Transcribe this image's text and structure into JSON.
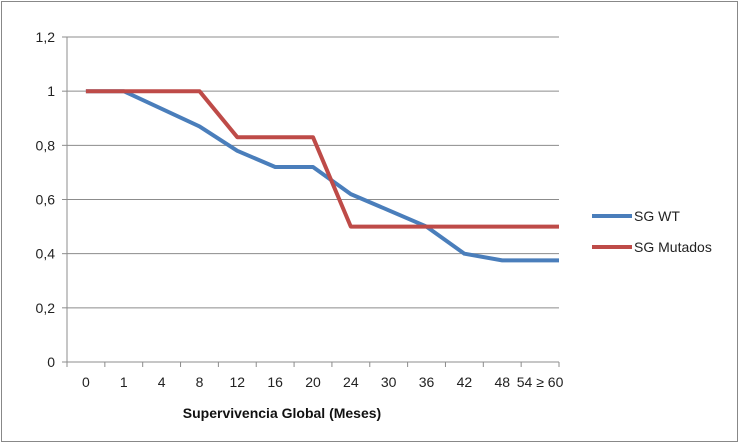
{
  "chart_data": {
    "type": "line",
    "title": "",
    "xlabel": "Supervivencia Global (Meses)",
    "ylabel": "",
    "categories": [
      "0",
      "1",
      "4",
      "8",
      "12",
      "16",
      "20",
      "24",
      "30",
      "36",
      "42",
      "48",
      "54 ≥ 60"
    ],
    "y_ticks": [
      "0",
      "0,2",
      "0,4",
      "0,6",
      "0,8",
      "1",
      "1,2"
    ],
    "ylim": [
      0,
      1.2
    ],
    "grid": "horizontal",
    "legend_position": "right",
    "series": [
      {
        "name": "SG WT",
        "color": "#4a7ebb",
        "points": [
          {
            "x": 0,
            "y": 1
          },
          {
            "x": 1,
            "y": 1
          },
          {
            "x": 3,
            "y": 0.87
          },
          {
            "x": 4,
            "y": 0.78
          },
          {
            "x": 5,
            "y": 0.72
          },
          {
            "x": 6,
            "y": 0.72
          },
          {
            "x": 7,
            "y": 0.62
          },
          {
            "x": 8,
            "y": 0.56
          },
          {
            "x": 9,
            "y": 0.5
          },
          {
            "x": 10,
            "y": 0.4
          },
          {
            "x": 11,
            "y": 0.375
          },
          {
            "x": 12.5,
            "y": 0.375
          }
        ]
      },
      {
        "name": "SG Mutados",
        "color": "#be4b48",
        "points": [
          {
            "x": 0,
            "y": 1
          },
          {
            "x": 3,
            "y": 1
          },
          {
            "x": 4,
            "y": 0.83
          },
          {
            "x": 6,
            "y": 0.83
          },
          {
            "x": 7,
            "y": 0.5
          },
          {
            "x": 12.5,
            "y": 0.5
          }
        ]
      }
    ]
  }
}
